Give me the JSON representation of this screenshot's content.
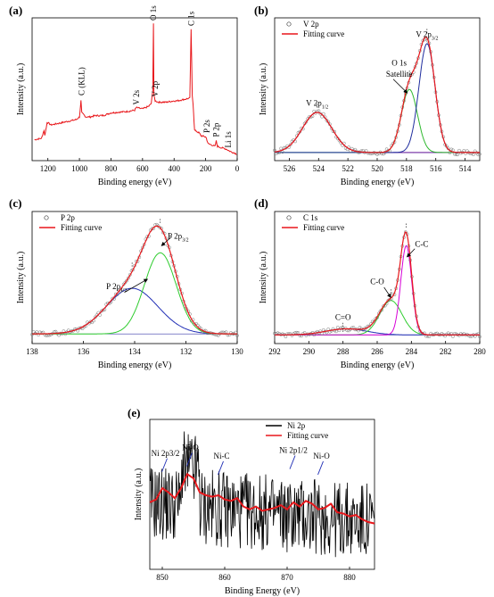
{
  "chart_data": [
    {
      "id": "a",
      "label": "(a)",
      "type": "line",
      "xlabel": "Binding energy (eV)",
      "ylabel": "Intensity (a.u.)",
      "xlim": [
        1300,
        0
      ],
      "xticks": [
        1200,
        1000,
        800,
        600,
        400,
        200,
        0
      ],
      "series": [
        {
          "color": "#e8171b",
          "x": [
            1285,
            1240,
            1230,
            1225,
            1220,
            1210,
            1205,
            1180,
            1100,
            1020,
            1000,
            990,
            985,
            975,
            960,
            930,
            900,
            850,
            800,
            700,
            650,
            640,
            600,
            560,
            545,
            535,
            531,
            528,
            522,
            520,
            500,
            450,
            400,
            380,
            300,
            292,
            285,
            280,
            270,
            240,
            230,
            200,
            195,
            185,
            160,
            140,
            133,
            125,
            100,
            70,
            56,
            40,
            15,
            0
          ],
          "y": [
            0.13,
            0.14,
            0.18,
            0.2,
            0.16,
            0.22,
            0.26,
            0.24,
            0.26,
            0.28,
            0.3,
            0.42,
            0.33,
            0.32,
            0.3,
            0.3,
            0.31,
            0.31,
            0.33,
            0.34,
            0.35,
            0.37,
            0.36,
            0.38,
            0.4,
            0.5,
            1.0,
            0.46,
            0.43,
            0.42,
            0.41,
            0.41,
            0.42,
            0.42,
            0.44,
            0.95,
            0.46,
            0.4,
            0.2,
            0.18,
            0.16,
            0.15,
            0.14,
            0.1,
            0.09,
            0.08,
            0.12,
            0.08,
            0.07,
            0.06,
            0.05,
            0.04,
            0.03,
            0.02
          ]
        }
      ],
      "annotations": [
        {
          "text": "C (KLL)",
          "x": 985,
          "y": 0.44
        },
        {
          "text": "V 2s",
          "x": 640,
          "y": 0.37
        },
        {
          "text": "O 1s",
          "x": 531,
          "y": 1.0
        },
        {
          "text": "V 2p",
          "x": 520,
          "y": 0.43
        },
        {
          "text": "C 1s",
          "x": 292,
          "y": 0.96
        },
        {
          "text": "P 2s",
          "x": 192,
          "y": 0.16
        },
        {
          "text": "P 2p",
          "x": 133,
          "y": 0.13
        },
        {
          "text": "Li 1s",
          "x": 56,
          "y": 0.05
        }
      ]
    },
    {
      "id": "b",
      "label": "(b)",
      "type": "line",
      "xlabel": "Binding energy (eV)",
      "ylabel": "Intensity (a.u.)",
      "xlim": [
        527,
        513
      ],
      "xticks": [
        526,
        524,
        522,
        520,
        518,
        516,
        514
      ],
      "ylim": [
        0,
        1.2
      ],
      "legend": [
        {
          "text": "V 2p",
          "style": "circle"
        },
        {
          "text": "Fitting curve",
          "style": "line",
          "color": "#e8171b"
        }
      ],
      "peaks": [
        {
          "center": 524.1,
          "amp": 0.35,
          "width": 1.0,
          "color": "#6a1b9a"
        },
        {
          "center": 517.8,
          "amp": 0.55,
          "width": 0.55,
          "color": "#2eb82e"
        },
        {
          "center": 516.6,
          "amp": 0.95,
          "width": 0.55,
          "color": "#1f2d9e"
        }
      ],
      "baseline": 0.04,
      "annotations": [
        {
          "text": "V 2p1/2",
          "x": 524.1,
          "y": 0.45
        },
        {
          "text": "O 1s",
          "x": 518.5,
          "y": 0.8
        },
        {
          "text": "Satellite",
          "x": 518.5,
          "y": 0.7
        },
        {
          "text": "V 2p3/2",
          "x": 516.6,
          "y": 1.05
        }
      ]
    },
    {
      "id": "c",
      "label": "(c)",
      "type": "line",
      "xlabel": "Binding energy (eV)",
      "ylabel": "Intensity (a.u.)",
      "xlim": [
        138,
        130
      ],
      "xticks": [
        138,
        136,
        134,
        132,
        130
      ],
      "ylim": [
        0,
        1.25
      ],
      "legend": [
        {
          "text": "P 2p",
          "style": "circle"
        },
        {
          "text": "Fitting curve",
          "style": "line",
          "color": "#e8171b"
        }
      ],
      "peaks": [
        {
          "center": 134.1,
          "amp": 0.45,
          "width": 1.0,
          "color": "#1f2db5"
        },
        {
          "center": 133.0,
          "amp": 0.8,
          "width": 0.62,
          "color": "#2ecc2e"
        }
      ],
      "baseline": 0.06,
      "annotations": [
        {
          "text": "P 2p1/2",
          "x": 134.7,
          "y": 0.5
        },
        {
          "text": "P 2p3/2",
          "x": 132.3,
          "y": 1.0
        }
      ]
    },
    {
      "id": "d",
      "label": "(d)",
      "type": "line",
      "xlabel": "Binding energy (eV)",
      "ylabel": "Intensity (a.u.)",
      "xlim": [
        292,
        280
      ],
      "xticks": [
        292,
        290,
        288,
        286,
        284,
        282,
        280
      ],
      "ylim": [
        0,
        1.25
      ],
      "legend": [
        {
          "text": "C 1s",
          "style": "circle"
        },
        {
          "text": "Fitting curve",
          "style": "line",
          "color": "#e8171b"
        }
      ],
      "peaks": [
        {
          "center": 287.8,
          "amp": 0.06,
          "width": 1.2,
          "color": "#1f2db5"
        },
        {
          "center": 285.2,
          "amp": 0.34,
          "width": 0.65,
          "color": "#2ecc2e"
        },
        {
          "center": 284.3,
          "amp": 0.88,
          "width": 0.32,
          "color": "#d600d6"
        }
      ],
      "baseline": 0.05,
      "annotations": [
        {
          "text": "C=O",
          "x": 288.0,
          "y": 0.2
        },
        {
          "text": "C-O",
          "x": 286.0,
          "y": 0.55
        },
        {
          "text": "C-C",
          "x": 283.4,
          "y": 0.92
        }
      ]
    },
    {
      "id": "e",
      "label": "(e)",
      "type": "line",
      "xlabel": "Binding Energy (eV)",
      "ylabel": "Intensity (a.u.)",
      "xlim": [
        848,
        884
      ],
      "xticks": [
        850,
        860,
        870,
        880
      ],
      "legend": [
        {
          "text": "Ni 2p",
          "style": "line",
          "color": "#000000"
        },
        {
          "text": "Fitting curve",
          "style": "line",
          "color": "#e8171b"
        }
      ],
      "series": [
        {
          "name": "Fitting curve",
          "color": "#e8171b",
          "x": [
            848,
            849,
            850,
            851,
            852,
            853,
            854,
            855,
            856,
            857,
            858,
            859,
            860,
            861,
            862,
            863,
            864,
            865,
            866,
            867,
            868,
            869,
            870,
            871,
            872,
            873,
            874,
            875,
            876,
            877,
            878,
            879,
            880,
            881,
            882,
            883,
            884
          ],
          "y": [
            0.45,
            0.47,
            0.55,
            0.52,
            0.48,
            0.55,
            0.65,
            0.62,
            0.52,
            0.5,
            0.49,
            0.5,
            0.47,
            0.46,
            0.48,
            0.42,
            0.4,
            0.42,
            0.39,
            0.4,
            0.41,
            0.43,
            0.4,
            0.45,
            0.42,
            0.46,
            0.44,
            0.4,
            0.41,
            0.44,
            0.38,
            0.37,
            0.35,
            0.36,
            0.33,
            0.31,
            0.3
          ]
        }
      ],
      "annotations": [
        {
          "text": "Ni 2p3/2",
          "x": 850.5
        },
        {
          "text": "Ni-O",
          "x": 854.5
        },
        {
          "text": "Ni-C",
          "x": 859.5
        },
        {
          "text": "Ni 2p1/2",
          "x": 871
        },
        {
          "text": "Ni-O",
          "x": 875.5
        }
      ]
    }
  ]
}
